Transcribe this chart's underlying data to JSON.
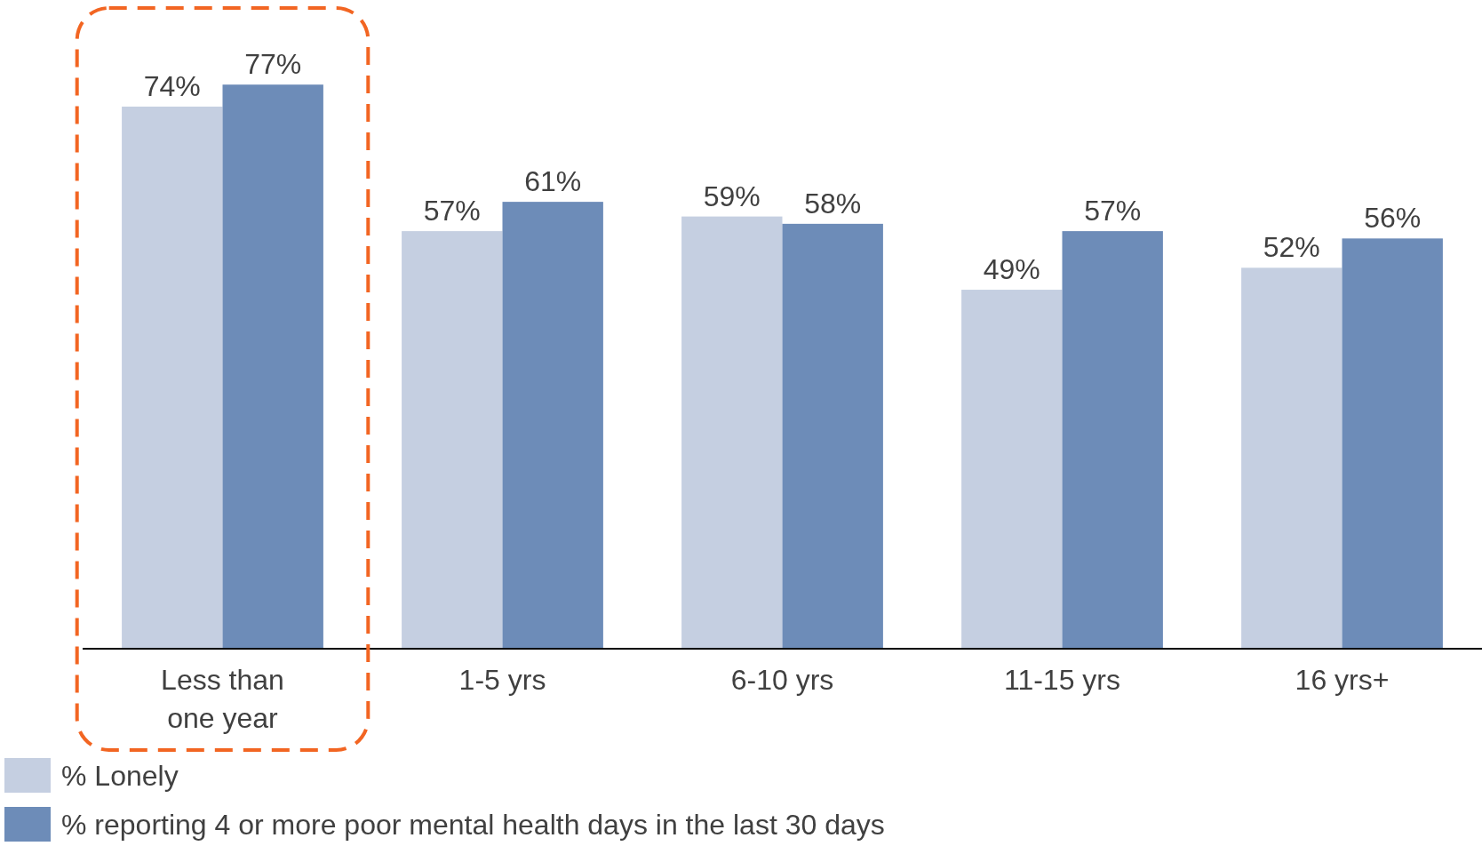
{
  "chart_data": {
    "type": "bar",
    "categories": [
      "Less than one year",
      "1-5 yrs",
      "6-10 yrs",
      "11-15 yrs",
      "16 yrs+"
    ],
    "series": [
      {
        "name": "% Lonely",
        "color": "#c5cfe1",
        "values": [
          74,
          57,
          59,
          49,
          52
        ],
        "value_labels": [
          "74%",
          "57%",
          "59%",
          "49%",
          "52%"
        ]
      },
      {
        "name": "% reporting 4 or more poor mental health days in the last 30 days",
        "color": "#6d8cb8",
        "values": [
          77,
          61,
          58,
          57,
          56
        ],
        "value_labels": [
          "77%",
          "61%",
          "58%",
          "57%",
          "56%"
        ]
      }
    ],
    "legend": "bottom left"
  }
}
